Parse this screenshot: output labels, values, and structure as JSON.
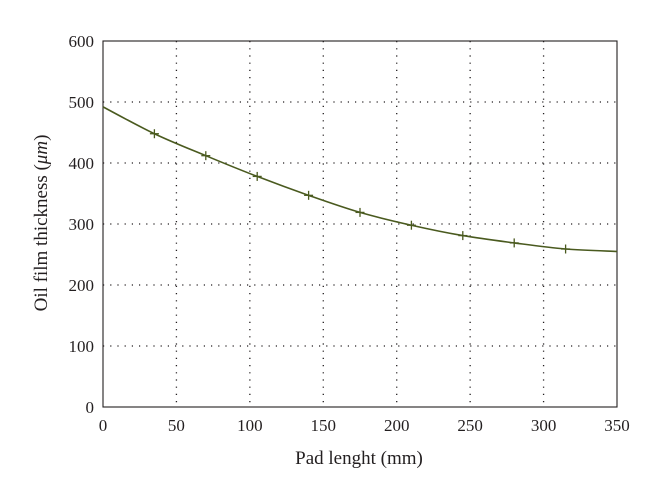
{
  "chart_data": {
    "type": "line",
    "title": "",
    "xlabel": "Pad lenght (mm)",
    "ylabel_prefix": "Oil film thickness (",
    "ylabel_unit": "μm",
    "ylabel_suffix": ")",
    "xlim": [
      0,
      350
    ],
    "ylim": [
      0,
      600
    ],
    "xticks": [
      "0",
      "50",
      "100",
      "150",
      "200",
      "250",
      "300",
      "350"
    ],
    "yticks": [
      "0",
      "100",
      "200",
      "300",
      "400",
      "500",
      "600"
    ],
    "grid": true,
    "colors": {
      "line": "#4a5a1f",
      "axis": "#231f20"
    },
    "series": [
      {
        "x": [
          0,
          35,
          70,
          105,
          140,
          175,
          210,
          245,
          280,
          315,
          350
        ],
        "y": [
          492,
          448,
          412,
          378,
          347,
          319,
          298,
          281,
          269,
          259,
          255
        ]
      }
    ],
    "marker_indices": [
      1,
      2,
      3,
      4,
      5,
      6,
      7,
      8,
      9
    ]
  }
}
